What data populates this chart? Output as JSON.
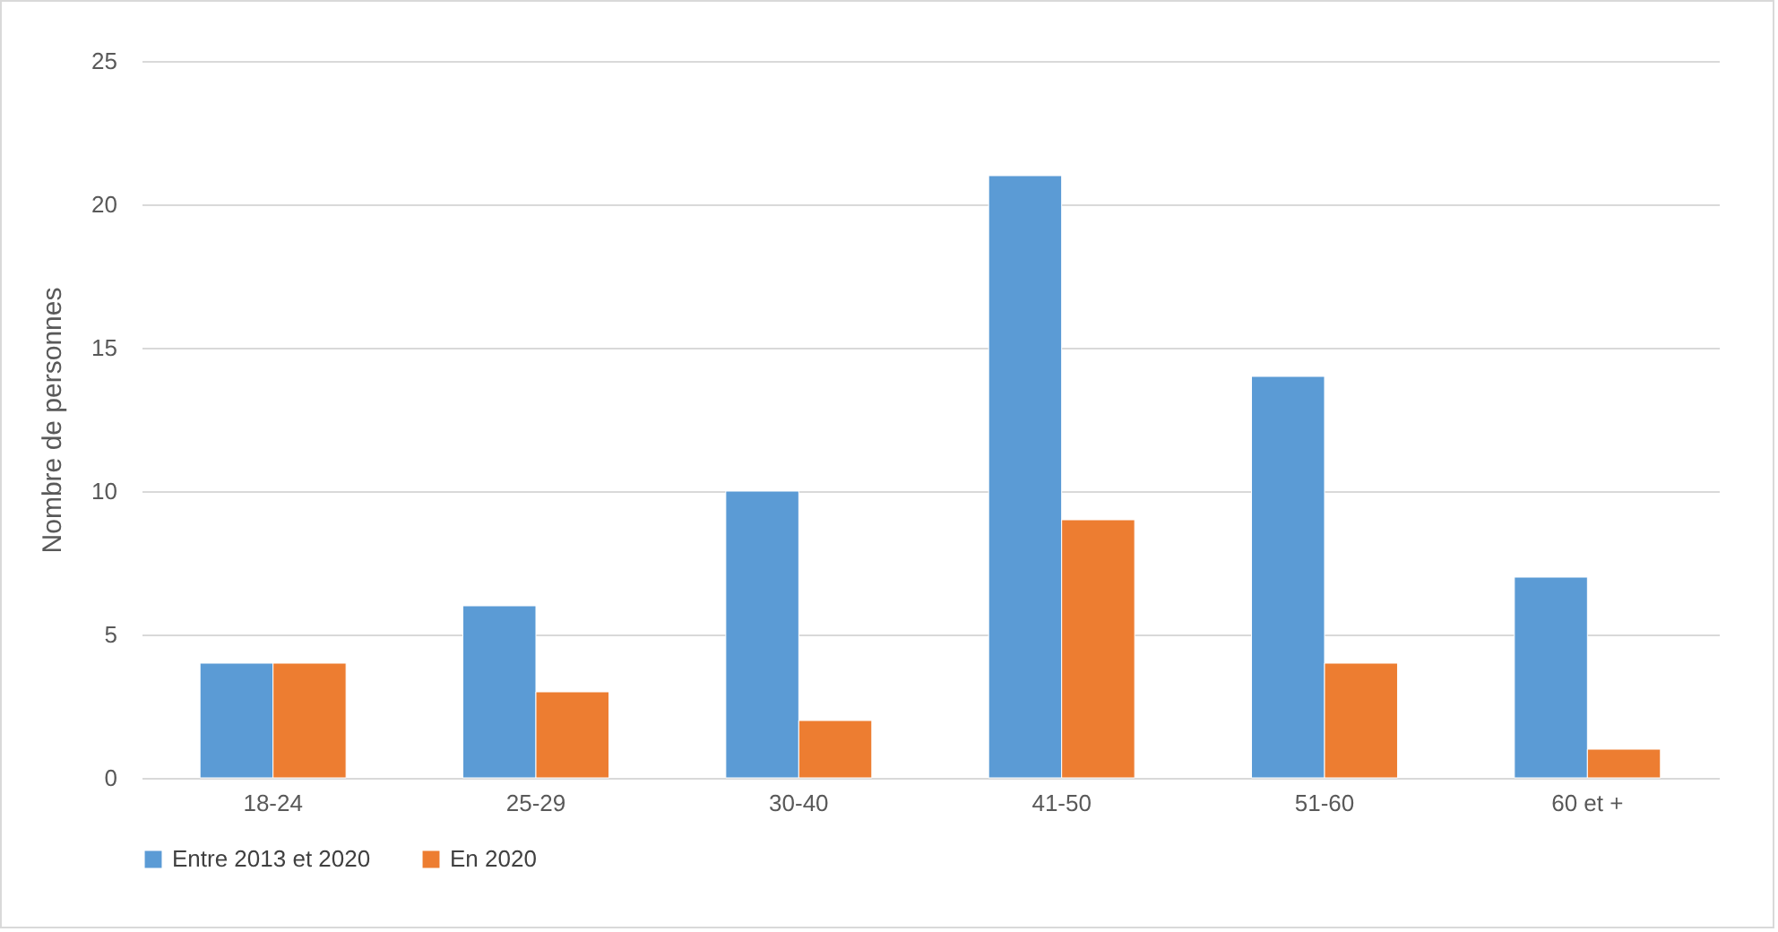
{
  "chart_data": {
    "type": "bar",
    "ylabel": "Nombre de personnes",
    "categories": [
      "18-24",
      "25-29",
      "30-40",
      "41-50",
      "51-60",
      "60 et +"
    ],
    "series": [
      {
        "name": "Entre 2013 et 2020",
        "color": "#5b9bd5",
        "values": [
          4,
          6,
          10,
          21,
          14,
          7
        ]
      },
      {
        "name": "En 2020",
        "color": "#ed7d31",
        "values": [
          4,
          3,
          2,
          9,
          4,
          1
        ]
      }
    ],
    "ylim": [
      0,
      25
    ],
    "yticks": [
      0,
      5,
      10,
      15,
      20,
      25
    ],
    "grid": "y",
    "legend": "bottom"
  }
}
